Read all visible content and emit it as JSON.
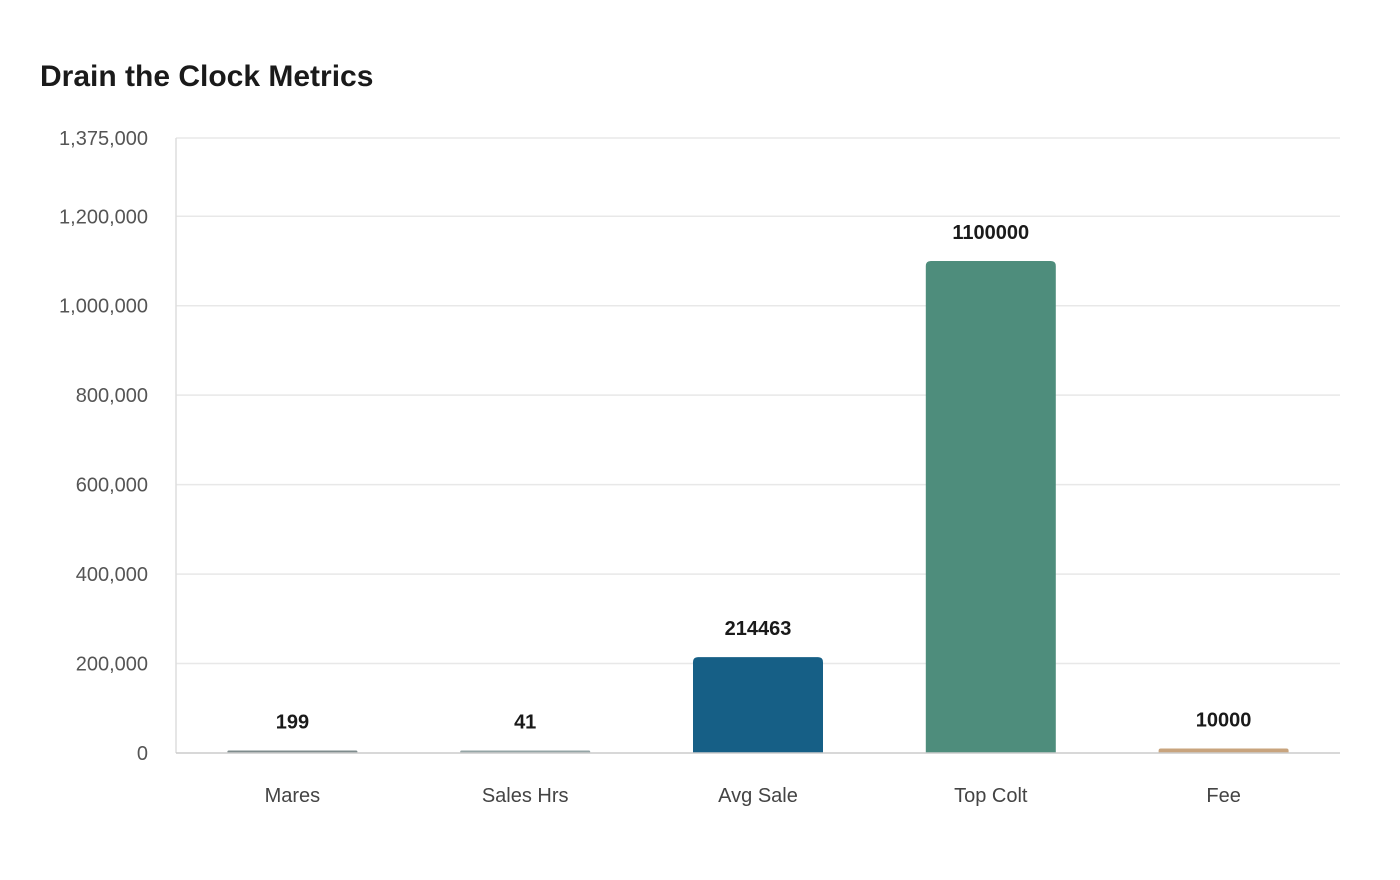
{
  "chart_data": {
    "type": "bar",
    "title": "Drain the Clock Metrics",
    "xlabel": "",
    "ylabel": "",
    "ylim": [
      0,
      1375000
    ],
    "yticks": [
      0,
      200000,
      400000,
      600000,
      800000,
      1000000,
      1200000,
      1375000
    ],
    "ytick_labels": [
      "0",
      "200,000",
      "400,000",
      "600,000",
      "800,000",
      "1,000,000",
      "1,200,000",
      "1,375,000"
    ],
    "categories": [
      "Mares",
      "Sales Hrs",
      "Avg Sale",
      "Top Colt",
      "Fee"
    ],
    "values": [
      199,
      41,
      214463,
      1100000,
      10000
    ],
    "value_labels": [
      "199",
      "41",
      "214463",
      "1100000",
      "10000"
    ],
    "colors": [
      "#7f8c8d",
      "#95a5a6",
      "#165f86",
      "#4e8d7c",
      "#c8a47e"
    ],
    "grid": true,
    "legend": "none"
  }
}
